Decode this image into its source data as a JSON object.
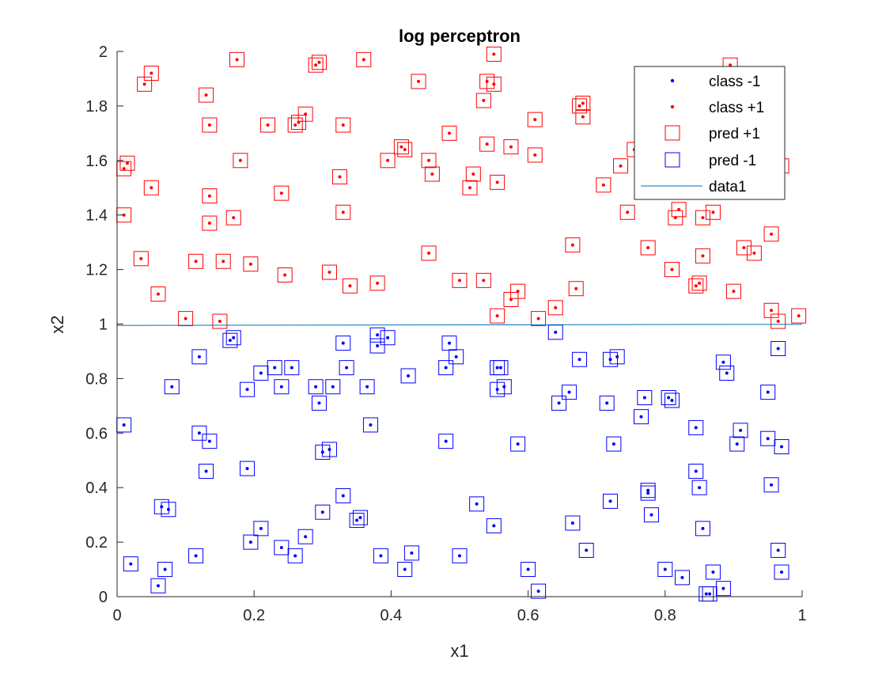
{
  "chart_data": {
    "type": "scatter",
    "title": "log perceptron",
    "xlabel": "x1",
    "ylabel": "x2",
    "xlim": [
      0,
      1
    ],
    "ylim": [
      0,
      2
    ],
    "xticks": [
      "0",
      "0.2",
      "0.4",
      "0.6",
      "0.8",
      "1"
    ],
    "yticks": [
      "0",
      "0.2",
      "0.4",
      "0.6",
      "0.8",
      "1",
      "1.2",
      "1.4",
      "1.6",
      "1.8",
      "2"
    ],
    "grid": false,
    "legend_position": "top-right",
    "colors": {
      "class_neg": "#0000ff",
      "class_pos": "#ff0000",
      "pred_pos": "#ff0000",
      "pred_neg": "#0000ff",
      "line": "#0072bd",
      "axis": "#262626"
    },
    "legend": [
      {
        "label": "class -1",
        "marker": "dot",
        "color": "#0000ff"
      },
      {
        "label": "class +1",
        "marker": "dot",
        "color": "#ff0000"
      },
      {
        "label": "pred +1",
        "marker": "square",
        "color": "#ff0000"
      },
      {
        "label": "pred -1",
        "marker": "square",
        "color": "#0000ff"
      },
      {
        "label": "data1",
        "marker": "line",
        "color": "#0072bd"
      }
    ],
    "series": [
      {
        "name": "class +1",
        "x": [
          0.01,
          0.04,
          0.05,
          0.13,
          0.175,
          0.295,
          0.29,
          0.36,
          0.55,
          0.54,
          0.55,
          0.44,
          0.535,
          0.275,
          0.135,
          0.22,
          0.26,
          0.265,
          0.33,
          0.015,
          0.18,
          0.395,
          0.42,
          0.415,
          0.455,
          0.46,
          0.485,
          0.515,
          0.52,
          0.54,
          0.575,
          0.61,
          0.61,
          0.675,
          0.68,
          0.68,
          0.71,
          0.735,
          0.755,
          0.85,
          0.895,
          0.96,
          0.05,
          0.135,
          0.24,
          0.325,
          0.01,
          0.17,
          0.135,
          0.33,
          0.035,
          0.115,
          0.155,
          0.195,
          0.31,
          0.34,
          0.38,
          0.06,
          0.1,
          0.15,
          0.245,
          0.455,
          0.5,
          0.535,
          0.555,
          0.575,
          0.585,
          0.615,
          0.64,
          0.665,
          0.67,
          0.745,
          0.775,
          0.81,
          0.82,
          0.815,
          0.855,
          0.87,
          0.845,
          0.85,
          0.855,
          0.9,
          0.93,
          0.955,
          0.955,
          0.965,
          0.97,
          0.995,
          0.915,
          0.555
        ],
        "y": [
          1.57,
          1.88,
          1.92,
          1.84,
          1.97,
          1.96,
          1.95,
          1.97,
          1.99,
          1.89,
          1.88,
          1.89,
          1.82,
          1.77,
          1.73,
          1.73,
          1.73,
          1.74,
          1.73,
          1.59,
          1.6,
          1.6,
          1.64,
          1.65,
          1.6,
          1.55,
          1.7,
          1.5,
          1.55,
          1.66,
          1.65,
          1.75,
          1.62,
          1.8,
          1.81,
          1.76,
          1.51,
          1.58,
          1.64,
          1.67,
          1.95,
          1.71,
          1.5,
          1.47,
          1.48,
          1.54,
          1.4,
          1.39,
          1.37,
          1.41,
          1.24,
          1.23,
          1.23,
          1.22,
          1.19,
          1.14,
          1.15,
          1.11,
          1.02,
          1.01,
          1.18,
          1.26,
          1.16,
          1.16,
          1.03,
          1.09,
          1.12,
          1.02,
          1.06,
          1.29,
          1.13,
          1.41,
          1.28,
          1.2,
          1.42,
          1.39,
          1.39,
          1.41,
          1.14,
          1.15,
          1.25,
          1.12,
          1.26,
          1.33,
          1.05,
          1.01,
          1.58,
          1.03,
          1.28,
          1.52
        ]
      },
      {
        "name": "class -1",
        "x": [
          0.01,
          0.02,
          0.06,
          0.07,
          0.065,
          0.075,
          0.08,
          0.115,
          0.12,
          0.12,
          0.135,
          0.13,
          0.165,
          0.17,
          0.19,
          0.19,
          0.195,
          0.21,
          0.21,
          0.23,
          0.24,
          0.24,
          0.255,
          0.26,
          0.275,
          0.29,
          0.295,
          0.3,
          0.3,
          0.31,
          0.315,
          0.33,
          0.33,
          0.335,
          0.35,
          0.355,
          0.365,
          0.37,
          0.38,
          0.38,
          0.385,
          0.395,
          0.42,
          0.425,
          0.43,
          0.48,
          0.48,
          0.485,
          0.5,
          0.495,
          0.525,
          0.55,
          0.555,
          0.555,
          0.56,
          0.565,
          0.585,
          0.6,
          0.615,
          0.64,
          0.645,
          0.66,
          0.665,
          0.675,
          0.685,
          0.715,
          0.72,
          0.72,
          0.725,
          0.73,
          0.765,
          0.77,
          0.775,
          0.775,
          0.78,
          0.8,
          0.805,
          0.81,
          0.825,
          0.845,
          0.845,
          0.85,
          0.855,
          0.86,
          0.87,
          0.885,
          0.885,
          0.89,
          0.905,
          0.91,
          0.95,
          0.95,
          0.955,
          0.965,
          0.965,
          0.97,
          0.97,
          0.865
        ],
        "y": [
          0.63,
          0.12,
          0.04,
          0.1,
          0.33,
          0.32,
          0.77,
          0.15,
          0.88,
          0.6,
          0.57,
          0.46,
          0.94,
          0.95,
          0.76,
          0.47,
          0.2,
          0.25,
          0.82,
          0.84,
          0.77,
          0.18,
          0.84,
          0.15,
          0.22,
          0.77,
          0.71,
          0.53,
          0.31,
          0.54,
          0.77,
          0.93,
          0.37,
          0.84,
          0.28,
          0.29,
          0.77,
          0.63,
          0.96,
          0.92,
          0.15,
          0.95,
          0.1,
          0.81,
          0.16,
          0.84,
          0.57,
          0.93,
          0.15,
          0.88,
          0.34,
          0.26,
          0.84,
          0.76,
          0.84,
          0.77,
          0.56,
          0.1,
          0.02,
          0.97,
          0.71,
          0.75,
          0.27,
          0.87,
          0.17,
          0.71,
          0.87,
          0.35,
          0.56,
          0.88,
          0.66,
          0.73,
          0.39,
          0.38,
          0.3,
          0.1,
          0.73,
          0.72,
          0.07,
          0.62,
          0.46,
          0.4,
          0.25,
          0.01,
          0.09,
          0.86,
          0.03,
          0.82,
          0.56,
          0.61,
          0.58,
          0.75,
          0.41,
          0.91,
          0.17,
          0.09,
          0.55,
          0.01
        ]
      }
    ],
    "line_series": {
      "name": "data1",
      "x": [
        0,
        1
      ],
      "y": [
        0.995,
        0.999
      ]
    }
  }
}
